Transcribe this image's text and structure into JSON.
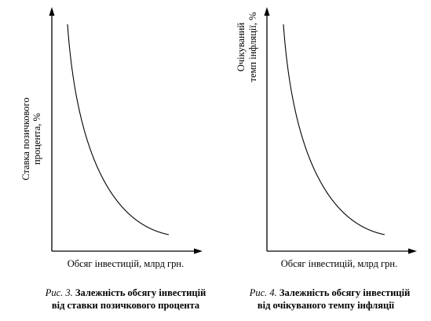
{
  "charts": [
    {
      "ylabel_lines": [
        "Ставка позичкового",
        "процента, %"
      ],
      "xlabel": "Обсяг інвестицій, млрд грн.",
      "caption_prefix": "Рис. 3.",
      "caption_line1": "Залежність обсягу інвестицій",
      "caption_line2": "від ставки позичкового процента"
    },
    {
      "ylabel_lines": [
        "Очікуваний",
        "темп інфляції, %"
      ],
      "xlabel": "Обсяг інвестицій, млрд грн.",
      "caption_prefix": "Рис. 4.",
      "caption_line1": "Залежність обсягу інвестицій",
      "caption_line2": "від очікуваного темпу інфляції"
    }
  ],
  "chart_data": [
    {
      "type": "line",
      "title": "",
      "xlabel": "Обсяг інвестицій, млрд грн.",
      "ylabel": "Ставка позичкового процента, %",
      "shape": "decreasing-convex",
      "ticks": "none",
      "grid": false,
      "legend": "none"
    },
    {
      "type": "line",
      "title": "",
      "xlabel": "Обсяг інвестицій, млрд грн.",
      "ylabel": "Очікуваний темп інфляції, %",
      "shape": "decreasing-convex",
      "ticks": "none",
      "grid": false,
      "legend": "none"
    }
  ]
}
